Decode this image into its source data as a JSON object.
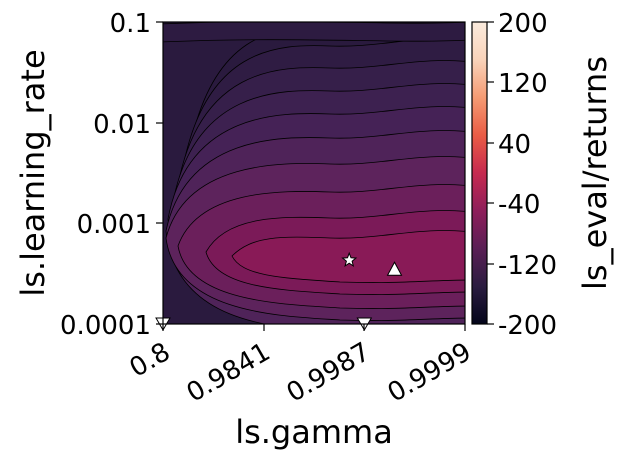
{
  "chart_data": {
    "type": "heatmap",
    "subtype": "filled-contour",
    "xlabel": "ls.gamma",
    "ylabel": "ls.learning_rate",
    "x_ticks": [
      "0.8",
      "0.9841",
      "0.9987",
      "0.9999"
    ],
    "y_ticks": [
      "0.1",
      "0.01",
      "0.001",
      "0.0001"
    ],
    "y_scale": "log",
    "ylim": [
      0.0001,
      0.1
    ],
    "colorbar": {
      "label": "ls_eval/returns",
      "ticks": [
        "200",
        "120",
        "40",
        "-40",
        "-120",
        "-200"
      ],
      "range": [
        -200,
        200
      ],
      "colormap": "rocket",
      "stops": [
        "#03051a",
        "#2b1c40",
        "#5a1f55",
        "#8e1e5a",
        "#c62a4f",
        "#ea5c45",
        "#f59b73",
        "#f9d3ba",
        "#faebdd"
      ]
    },
    "contour_fills": [
      "#2a1a3e",
      "#2f1c43",
      "#361f4a",
      "#3d2150",
      "#452256",
      "#4f2359",
      "#5d235c",
      "#6b1f5b",
      "#7b1a58",
      "#891a57"
    ],
    "markers": [
      {
        "shape": "star",
        "x": "0.9978",
        "y": 0.00043
      },
      {
        "shape": "triangle-up",
        "x": "0.9991",
        "y": 0.00035
      },
      {
        "shape": "triangle-down",
        "x": "0.9987",
        "y": 0.0001
      },
      {
        "shape": "triangle-down",
        "x": "0.8",
        "y": 0.0001
      }
    ]
  }
}
